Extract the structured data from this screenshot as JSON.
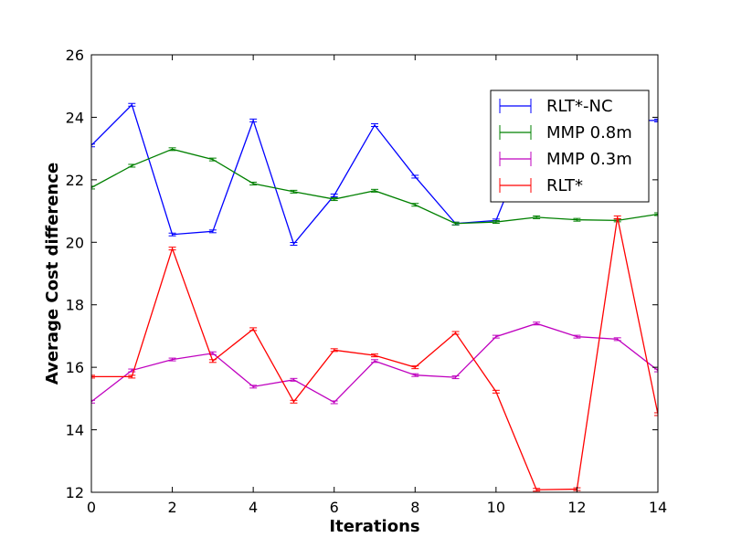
{
  "chart_data": {
    "type": "line",
    "title": "",
    "xlabel": "Iterations",
    "ylabel": "Average Cost difference",
    "xlim": [
      0,
      14
    ],
    "ylim": [
      12,
      26
    ],
    "xticks": [
      0,
      2,
      4,
      6,
      8,
      10,
      12,
      14
    ],
    "yticks": [
      12,
      14,
      16,
      18,
      20,
      22,
      24,
      26
    ],
    "grid": false,
    "legend_position": "top-right",
    "x": [
      0,
      1,
      2,
      3,
      4,
      5,
      6,
      7,
      8,
      9,
      10,
      11,
      12,
      13,
      14
    ],
    "series": [
      {
        "name": "RLT*-NC",
        "color": "#0000ff",
        "values": [
          23.1,
          24.4,
          20.25,
          20.35,
          23.9,
          19.95,
          21.5,
          23.75,
          22.1,
          20.6,
          20.7,
          23.9,
          23.9,
          23.9,
          23.9
        ]
      },
      {
        "name": "MMP 0.8m",
        "color": "#008000",
        "values": [
          21.75,
          22.45,
          22.98,
          22.65,
          21.88,
          21.62,
          21.38,
          21.65,
          21.2,
          20.6,
          20.65,
          20.8,
          20.72,
          20.7,
          20.9
        ]
      },
      {
        "name": "MMP 0.3m",
        "color": "#bf00bf",
        "values": [
          14.9,
          15.9,
          16.25,
          16.45,
          15.38,
          15.6,
          14.88,
          16.2,
          15.75,
          15.68,
          16.98,
          17.4,
          16.98,
          16.9,
          15.9
        ]
      },
      {
        "name": "RLT*",
        "color": "#ff0000",
        "values": [
          15.7,
          15.7,
          19.8,
          16.2,
          17.22,
          14.9,
          16.55,
          16.38,
          16.0,
          17.1,
          15.22,
          12.08,
          12.1,
          20.8,
          14.5
        ]
      }
    ]
  }
}
